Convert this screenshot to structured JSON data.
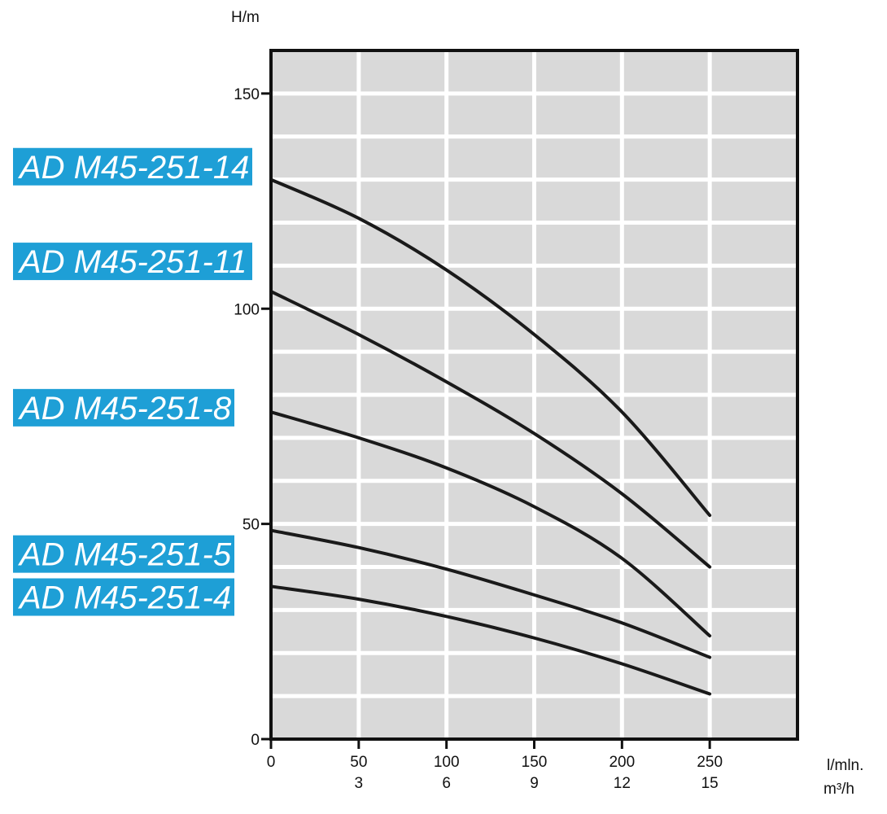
{
  "chart_data": {
    "type": "line",
    "title": "",
    "ylabel": "H/m",
    "xlabel": "l/mln.",
    "xlabel_secondary": "m³/h",
    "xlim": [
      0,
      300
    ],
    "ylim": [
      0,
      160
    ],
    "x_ticks": [
      0,
      50,
      100,
      150,
      200,
      250
    ],
    "x_tick_labels": [
      "0",
      "50",
      "100",
      "150",
      "200",
      "250"
    ],
    "x_tick_labels_secondary": [
      "",
      "3",
      "6",
      "9",
      "12",
      "15"
    ],
    "y_ticks": [
      0,
      50,
      100,
      150
    ],
    "y_tick_labels": [
      "0",
      "50",
      "100",
      "150"
    ],
    "grid": true,
    "x_grid_step": 50,
    "y_grid_step": 10,
    "legend_position": "left",
    "series": [
      {
        "name": "AD M45-251-14",
        "label_y": 133,
        "x": [
          0,
          50,
          100,
          150,
          200,
          250
        ],
        "values": [
          130,
          121,
          109,
          94,
          76,
          52
        ]
      },
      {
        "name": "AD M45-251-11",
        "label_y": 111,
        "x": [
          0,
          50,
          100,
          150,
          200,
          250
        ],
        "values": [
          104,
          94,
          83,
          71,
          57,
          40
        ]
      },
      {
        "name": "AD M45-251-8",
        "label_y": 77,
        "x": [
          0,
          50,
          100,
          150,
          200,
          250
        ],
        "values": [
          76,
          70,
          63,
          54,
          42,
          24
        ]
      },
      {
        "name": "AD M45-251-5",
        "label_y": 43,
        "x": [
          0,
          50,
          100,
          150,
          200,
          250
        ],
        "values": [
          48.5,
          44.5,
          39.5,
          33.5,
          27,
          19
        ]
      },
      {
        "name": "AD M45-251-4",
        "label_y": 33,
        "x": [
          0,
          50,
          100,
          150,
          200,
          250
        ],
        "values": [
          35.5,
          32.5,
          28.5,
          23.5,
          17.5,
          10.5
        ]
      }
    ],
    "colors": {
      "plot_background": "#d9d9d9",
      "grid": "#ffffff",
      "curve": "#1a1a1a",
      "badge": "#1e9fd6",
      "badge_text": "#ffffff"
    }
  }
}
